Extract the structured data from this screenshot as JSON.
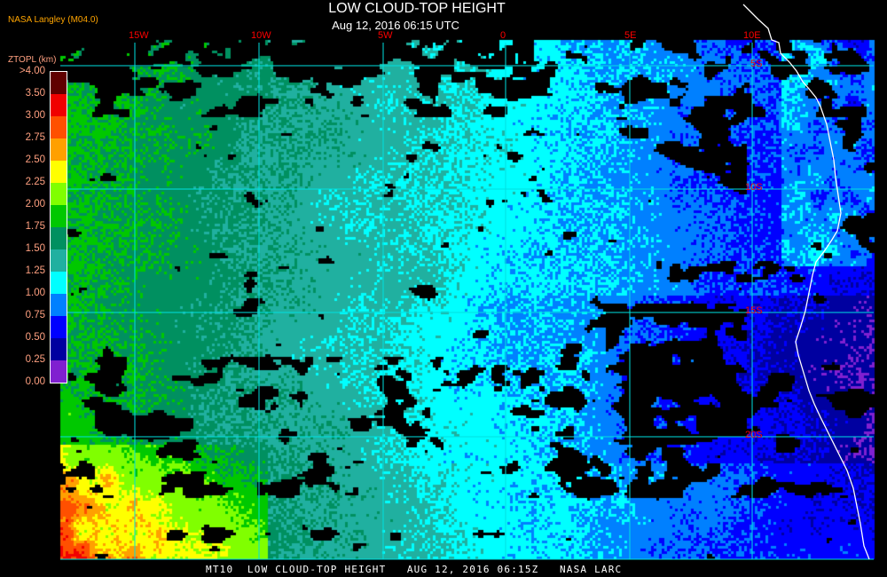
{
  "header": {
    "title": "LOW CLOUD-TOP HEIGHT",
    "subtitle": "Aug 12, 2016 06:15 UTC",
    "organization": "NASA Langley (M04.0)"
  },
  "legend": {
    "unit_label": "ZTOPL (km)",
    "labels": [
      ">4.00",
      "3.50",
      "3.00",
      "2.75",
      "2.50",
      "2.25",
      "2.00",
      "1.75",
      "1.50",
      "1.25",
      "1.00",
      "0.75",
      "0.50",
      "0.25",
      "0.00"
    ],
    "colors": [
      "#600000",
      "#f00000",
      "#ff5000",
      "#ffa000",
      "#ffff00",
      "#80ff00",
      "#00c800",
      "#009060",
      "#20b0a0",
      "#00ffff",
      "#0080ff",
      "#0000ff",
      "#0000a0",
      "#8020d0"
    ]
  },
  "map": {
    "longitude_labels": [
      "15W",
      "10W",
      "5W",
      "0",
      "5E",
      "10E"
    ],
    "latitude_labels": [
      "5S",
      "10S",
      "15S",
      "20S"
    ],
    "grid_color": "#00e0e0",
    "label_color": "#ff0000",
    "coastline_color": "#ffffff"
  },
  "footer": {
    "text": "MT10  LOW CLOUD-TOP HEIGHT   AUG 12, 2016 06:15Z   NASA LARC"
  }
}
